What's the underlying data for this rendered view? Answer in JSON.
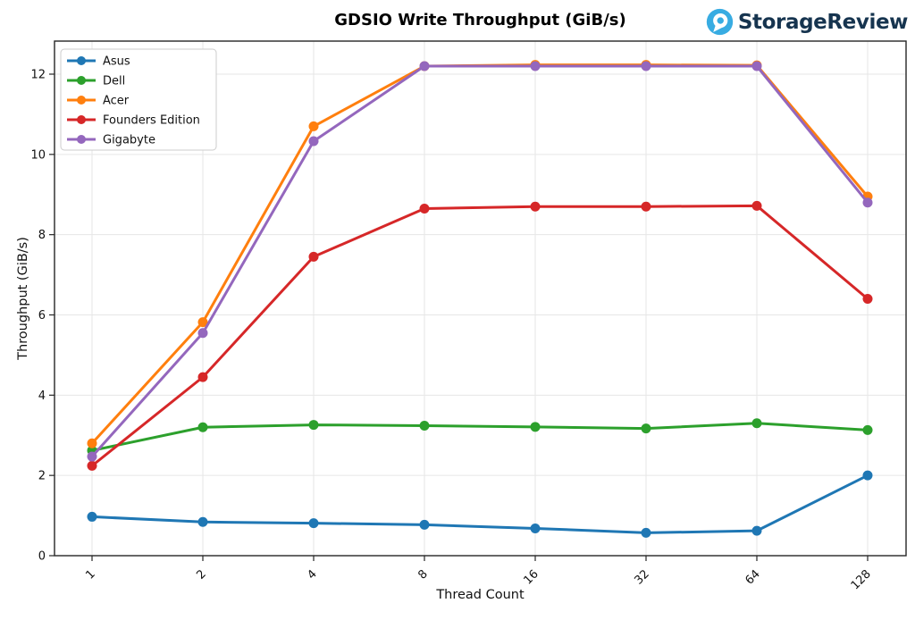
{
  "header": {
    "logo_text": "StorageReview",
    "logo_icon_color": "#38ace2",
    "logo_text_color": "#16344f"
  },
  "chart_data": {
    "type": "line",
    "title": "GDSIO Write Throughput (GiB/s)",
    "xlabel": "Thread Count",
    "ylabel": "Throughput (GiB/s)",
    "categories": [
      "1",
      "2",
      "4",
      "8",
      "16",
      "32",
      "64",
      "128"
    ],
    "x_scale": "log2-categorical",
    "yticks": [
      0,
      2,
      4,
      6,
      8,
      10,
      12
    ],
    "ylim": [
      0,
      12.9
    ],
    "grid": true,
    "legend_position": "upper-left",
    "marker": "circle",
    "series": [
      {
        "name": "Asus",
        "color": "#1f77b4",
        "values": [
          0.97,
          0.84,
          0.81,
          0.77,
          0.68,
          0.57,
          0.62,
          2.0
        ]
      },
      {
        "name": "Dell",
        "color": "#2ca02c",
        "values": [
          2.62,
          3.2,
          3.26,
          3.24,
          3.21,
          3.17,
          3.3,
          3.13
        ]
      },
      {
        "name": "Acer",
        "color": "#ff7f0e",
        "values": [
          2.8,
          5.82,
          10.7,
          12.2,
          12.23,
          12.23,
          12.22,
          8.95
        ]
      },
      {
        "name": "Founders Edition",
        "color": "#d62728",
        "values": [
          2.24,
          4.45,
          7.45,
          8.65,
          8.7,
          8.7,
          8.72,
          6.4
        ]
      },
      {
        "name": "Gigabyte",
        "color": "#9467bd",
        "values": [
          2.47,
          5.55,
          10.33,
          12.2,
          12.2,
          12.2,
          12.2,
          8.8
        ]
      }
    ]
  }
}
